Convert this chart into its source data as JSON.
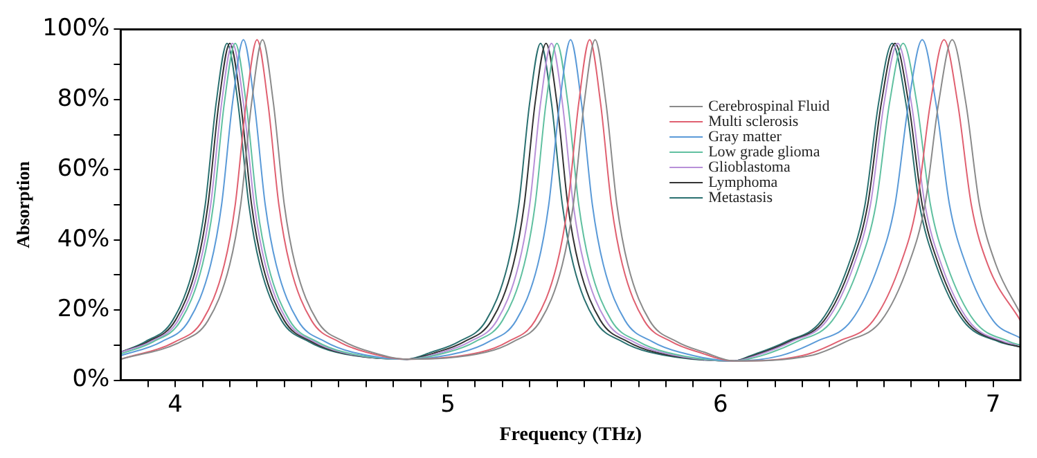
{
  "chart_data": {
    "type": "line",
    "xlabel": "Frequency (THz)",
    "ylabel": "Absorption",
    "xlim": [
      3.8,
      7.1
    ],
    "ylim": [
      0,
      100
    ],
    "xticks": [
      {
        "value": 3.9,
        "label": null
      },
      4,
      {
        "value": 4.1,
        "label": null
      },
      {
        "value": 4.2,
        "label": null
      },
      {
        "value": 4.3,
        "label": null
      },
      {
        "value": 4.4,
        "label": null
      },
      {
        "value": 4.5,
        "label": null
      },
      {
        "value": 4.6,
        "label": null
      },
      {
        "value": 4.7,
        "label": null
      },
      {
        "value": 4.8,
        "label": null
      },
      {
        "value": 4.9,
        "label": null
      },
      5,
      {
        "value": 5.1,
        "label": null
      },
      {
        "value": 5.2,
        "label": null
      },
      {
        "value": 5.3,
        "label": null
      },
      {
        "value": 5.4,
        "label": null
      },
      {
        "value": 5.5,
        "label": null
      },
      {
        "value": 5.6,
        "label": null
      },
      {
        "value": 5.7,
        "label": null
      },
      {
        "value": 5.8,
        "label": null
      },
      {
        "value": 5.9,
        "label": null
      },
      6,
      {
        "value": 6.1,
        "label": null
      },
      {
        "value": 6.2,
        "label": null
      },
      {
        "value": 6.3,
        "label": null
      },
      {
        "value": 6.4,
        "label": null
      },
      {
        "value": 6.5,
        "label": null
      },
      {
        "value": 6.6,
        "label": null
      },
      {
        "value": 6.7,
        "label": null
      },
      {
        "value": 6.8,
        "label": null
      },
      {
        "value": 6.9,
        "label": null
      },
      7
    ],
    "yticks": [
      {
        "value": 0,
        "label": "0%"
      },
      {
        "value": 10,
        "label": null
      },
      {
        "value": 20,
        "label": "20%"
      },
      {
        "value": 30,
        "label": null
      },
      {
        "value": 40,
        "label": "40%"
      },
      {
        "value": 50,
        "label": null
      },
      {
        "value": 60,
        "label": "60%"
      },
      {
        "value": 70,
        "label": null
      },
      {
        "value": 80,
        "label": "80%"
      },
      {
        "value": 90,
        "label": null
      },
      {
        "value": 100,
        "label": "100%"
      }
    ],
    "grid": false,
    "legend": "right",
    "marker": "none",
    "line_style": "solid",
    "series": [
      {
        "name": "Cerebrospinal Fluid",
        "color": "#8a8a8a",
        "x": [
          3.8,
          4.02,
          4.12,
          4.2,
          4.24,
          4.28,
          4.32,
          4.36,
          4.4,
          4.44,
          4.52,
          4.62,
          4.72,
          4.85,
          5.14,
          5.24,
          5.34,
          5.42,
          5.46,
          5.5,
          5.54,
          5.58,
          5.62,
          5.66,
          5.74,
          5.84,
          5.94,
          6.05,
          6.33,
          6.46,
          6.59,
          6.69,
          6.75,
          6.8,
          6.85,
          6.9,
          6.95,
          7.01,
          7.1
        ],
        "values": [
          6,
          11,
          17,
          33,
          50,
          79,
          97,
          79,
          50,
          33,
          17,
          11,
          8,
          6,
          8,
          11,
          17,
          33,
          50,
          79,
          97,
          79,
          50,
          33,
          17,
          11,
          8,
          5.5,
          7,
          11,
          17,
          33,
          50,
          79,
          97,
          79,
          50,
          33,
          19
        ]
      },
      {
        "name": "Multi sclerosis",
        "color": "#e06070",
        "x": [
          3.8,
          4.0,
          4.1,
          4.18,
          4.22,
          4.26,
          4.3,
          4.34,
          4.38,
          4.42,
          4.5,
          4.6,
          4.7,
          4.85,
          5.12,
          5.22,
          5.32,
          5.4,
          5.44,
          5.48,
          5.52,
          5.56,
          5.6,
          5.64,
          5.72,
          5.82,
          5.92,
          6.05,
          6.3,
          6.43,
          6.56,
          6.66,
          6.72,
          6.77,
          6.82,
          6.87,
          6.92,
          6.98,
          7.1
        ],
        "values": [
          6,
          11,
          17,
          33,
          50,
          79,
          97,
          79,
          50,
          33,
          17,
          11,
          8,
          6,
          8,
          11,
          17,
          33,
          50,
          79,
          97,
          79,
          50,
          33,
          17,
          11,
          8,
          5.5,
          7,
          11,
          17,
          33,
          50,
          79,
          97,
          79,
          50,
          33,
          17
        ]
      },
      {
        "name": "Gray matter",
        "color": "#5a9ad8",
        "x": [
          3.8,
          3.95,
          4.05,
          4.13,
          4.17,
          4.21,
          4.25,
          4.29,
          4.33,
          4.37,
          4.45,
          4.55,
          4.65,
          4.85,
          5.05,
          5.15,
          5.25,
          5.33,
          5.37,
          5.41,
          5.45,
          5.49,
          5.53,
          5.57,
          5.65,
          5.75,
          5.85,
          6.05,
          6.22,
          6.35,
          6.48,
          6.58,
          6.64,
          6.69,
          6.74,
          6.79,
          6.84,
          6.9,
          7.0,
          7.1
        ],
        "values": [
          7,
          11,
          17,
          33,
          50,
          79,
          97,
          79,
          50,
          33,
          17,
          11,
          8,
          6,
          8,
          11,
          17,
          33,
          50,
          79,
          97,
          79,
          50,
          33,
          17,
          11,
          8,
          5.5,
          7,
          11,
          17,
          33,
          50,
          79,
          97,
          79,
          50,
          33,
          17,
          12
        ]
      },
      {
        "name": "Low grade glioma",
        "color": "#60c0a0",
        "x": [
          3.8,
          3.92,
          4.02,
          4.1,
          4.14,
          4.18,
          4.22,
          4.26,
          4.3,
          4.34,
          4.42,
          4.52,
          4.62,
          4.85,
          5.0,
          5.1,
          5.2,
          5.28,
          5.32,
          5.36,
          5.4,
          5.44,
          5.48,
          5.52,
          5.6,
          5.7,
          5.8,
          6.05,
          6.15,
          6.28,
          6.41,
          6.51,
          6.57,
          6.62,
          6.67,
          6.72,
          6.77,
          6.83,
          6.93,
          7.06,
          7.1
        ],
        "values": [
          7.5,
          11,
          17,
          33,
          50,
          79,
          96,
          79,
          50,
          33,
          17,
          11,
          8,
          6,
          8,
          11,
          17,
          33,
          50,
          79,
          96,
          79,
          50,
          33,
          17,
          11,
          8,
          5.5,
          7,
          11,
          17,
          33,
          50,
          79,
          96,
          79,
          50,
          33,
          17,
          11,
          10
        ]
      },
      {
        "name": "Glioblastoma",
        "color": "#b890d8",
        "x": [
          3.8,
          3.91,
          4.01,
          4.09,
          4.13,
          4.17,
          4.21,
          4.25,
          4.29,
          4.33,
          4.41,
          4.51,
          4.61,
          4.85,
          4.98,
          5.08,
          5.18,
          5.26,
          5.3,
          5.34,
          5.38,
          5.42,
          5.46,
          5.5,
          5.58,
          5.68,
          5.78,
          6.05,
          6.13,
          6.26,
          6.39,
          6.49,
          6.55,
          6.6,
          6.65,
          6.7,
          6.75,
          6.81,
          6.91,
          7.04,
          7.1
        ],
        "values": [
          8,
          11,
          17,
          33,
          50,
          79,
          96,
          79,
          50,
          33,
          17,
          11,
          8,
          6,
          8,
          11,
          17,
          33,
          50,
          79,
          96,
          79,
          50,
          33,
          17,
          11,
          8,
          5.5,
          7,
          11,
          17,
          33,
          50,
          79,
          96,
          79,
          50,
          33,
          17,
          11,
          10
        ]
      },
      {
        "name": "Lymphoma",
        "color": "#333333",
        "x": [
          3.8,
          3.9,
          4.0,
          4.08,
          4.12,
          4.16,
          4.2,
          4.24,
          4.28,
          4.32,
          4.4,
          4.5,
          4.6,
          4.85,
          4.96,
          5.06,
          5.16,
          5.24,
          5.28,
          5.32,
          5.36,
          5.4,
          5.44,
          5.48,
          5.56,
          5.66,
          5.76,
          6.05,
          6.12,
          6.25,
          6.38,
          6.48,
          6.54,
          6.59,
          6.64,
          6.69,
          6.74,
          6.8,
          6.9,
          7.03,
          7.1
        ],
        "values": [
          8,
          11,
          17,
          33,
          50,
          79,
          96,
          79,
          50,
          33,
          17,
          11,
          8,
          6,
          8,
          11,
          17,
          33,
          50,
          79,
          96,
          79,
          50,
          33,
          17,
          11,
          8,
          5.5,
          7,
          11,
          17,
          33,
          50,
          79,
          96,
          79,
          50,
          33,
          17,
          11,
          9.5
        ]
      },
      {
        "name": "Metastasis",
        "color": "#2a7070",
        "x": [
          3.8,
          3.89,
          3.99,
          4.07,
          4.11,
          4.15,
          4.19,
          4.23,
          4.27,
          4.31,
          4.39,
          4.49,
          4.59,
          4.85,
          4.94,
          5.04,
          5.14,
          5.22,
          5.26,
          5.3,
          5.34,
          5.38,
          5.42,
          5.46,
          5.54,
          5.64,
          5.74,
          6.05,
          6.11,
          6.24,
          6.37,
          6.47,
          6.53,
          6.58,
          6.63,
          6.68,
          6.73,
          6.79,
          6.89,
          7.02,
          7.1
        ],
        "values": [
          8,
          11,
          17,
          33,
          50,
          79,
          96,
          79,
          50,
          33,
          17,
          11,
          8,
          6,
          8,
          11,
          17,
          33,
          50,
          79,
          96,
          79,
          50,
          33,
          17,
          11,
          8,
          5.5,
          7,
          11,
          17,
          33,
          50,
          79,
          96,
          79,
          50,
          33,
          17,
          11,
          9.5
        ]
      }
    ]
  }
}
